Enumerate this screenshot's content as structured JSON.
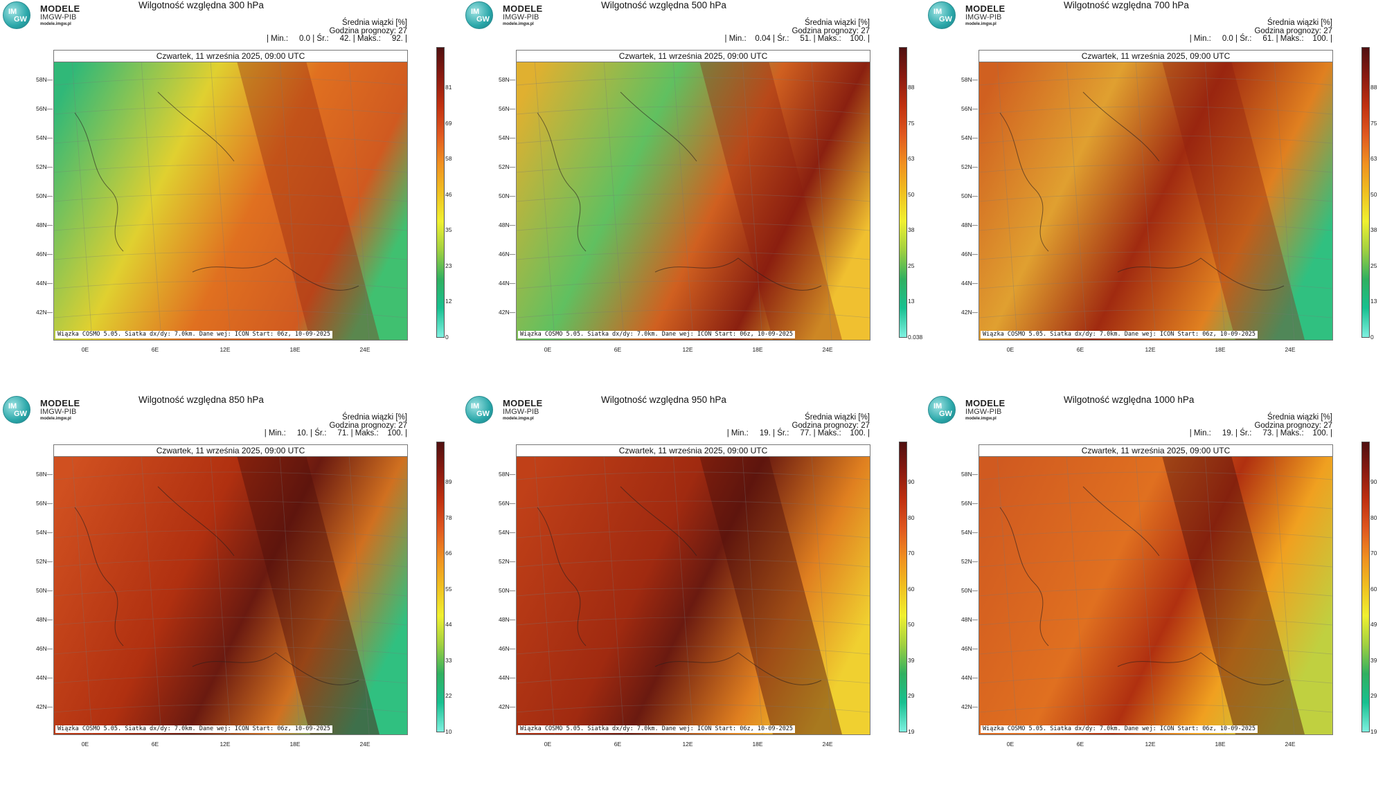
{
  "logo": {
    "name": "MODELE",
    "org": "IMGW-PIB",
    "url": "modele.imgw.pl",
    "letters_top": "IM",
    "letters_bottom": "GW"
  },
  "colors": {
    "scale": [
      "#7ff0e0",
      "#18c090",
      "#30b060",
      "#a0d040",
      "#f0f030",
      "#f0c020",
      "#f09020",
      "#e05820",
      "#c03010",
      "#8a1a10",
      "#501010"
    ]
  },
  "common": {
    "info_title": "Średnia wiązki [%]",
    "forecast_hour": "Godzina prognozy: 27",
    "date": "Czwartek, 11 września 2025, 09:00 UTC",
    "footer": "Wiązka COSMO 5.05. Siatka dx/dy: 7.0km. Dane wej: ICON Start: 06z, 10-09-2025",
    "lat_labels": [
      "58N",
      "56N",
      "54N",
      "52N",
      "50N",
      "48N",
      "46N",
      "44N",
      "42N"
    ],
    "lon_labels": [
      "0E",
      "6E",
      "12E",
      "18E",
      "24E"
    ]
  },
  "panels": [
    {
      "title": "Wilgotność względna 300 hPa",
      "stats": "| Min.:     0.0 | Śr.:     42. | Maks.:     92. |",
      "colorbar_ticks": [
        "81",
        "69",
        "58",
        "46",
        "35",
        "23",
        "12",
        "0"
      ]
    },
    {
      "title": "Wilgotność względna 500 hPa",
      "stats": "| Min.:    0.04 | Śr.:     51. | Maks.:    100. |",
      "colorbar_ticks": [
        "88",
        "75",
        "63",
        "50",
        "38",
        "25",
        "13",
        "0.038"
      ]
    },
    {
      "title": "Wilgotność względna 700 hPa",
      "stats": "| Min.:     0.0 | Śr.:     61. | Maks.:    100. |",
      "colorbar_ticks": [
        "88",
        "75",
        "63",
        "50",
        "38",
        "25",
        "13",
        "0"
      ]
    },
    {
      "title": "Wilgotność względna 850 hPa",
      "stats": "| Min.:     10. | Śr.:     71. | Maks.:    100. |",
      "colorbar_ticks": [
        "89",
        "78",
        "66",
        "55",
        "44",
        "33",
        "22",
        "10"
      ]
    },
    {
      "title": "Wilgotność względna 950 hPa",
      "stats": "| Min.:     19. | Śr.:     77. | Maks.:    100. |",
      "colorbar_ticks": [
        "90",
        "80",
        "70",
        "60",
        "50",
        "39",
        "29",
        "19"
      ]
    },
    {
      "title": "Wilgotność względna 1000 hPa",
      "stats": "| Min.:     19. | Śr.:     73. | Maks.:    100. |",
      "colorbar_ticks": [
        "90",
        "80",
        "70",
        "60",
        "49",
        "39",
        "29",
        "19"
      ]
    }
  ],
  "chart_data": [
    {
      "type": "heatmap",
      "title": "Wilgotność względna 300 hPa",
      "colorbar": [
        81,
        69,
        58,
        46,
        35,
        23,
        12,
        0
      ]
    },
    {
      "type": "heatmap",
      "title": "Wilgotność względna 500 hPa",
      "colorbar": [
        88,
        75,
        63,
        50,
        38,
        25,
        13,
        0.038
      ]
    },
    {
      "type": "heatmap",
      "title": "Wilgotność względna 700 hPa",
      "colorbar": [
        88,
        75,
        63,
        50,
        38,
        25,
        13,
        0
      ]
    },
    {
      "type": "heatmap",
      "title": "Wilgotność względna 850 hPa",
      "colorbar": [
        89,
        78,
        66,
        55,
        44,
        33,
        22,
        10
      ]
    },
    {
      "type": "heatmap",
      "title": "Wilgotność względna 950 hPa",
      "colorbar": [
        90,
        80,
        70,
        60,
        50,
        39,
        29,
        19
      ]
    },
    {
      "type": "heatmap",
      "title": "Wilgotność względna 1000 hPa",
      "colorbar": [
        90,
        80,
        70,
        60,
        49,
        39,
        29,
        19
      ]
    }
  ]
}
